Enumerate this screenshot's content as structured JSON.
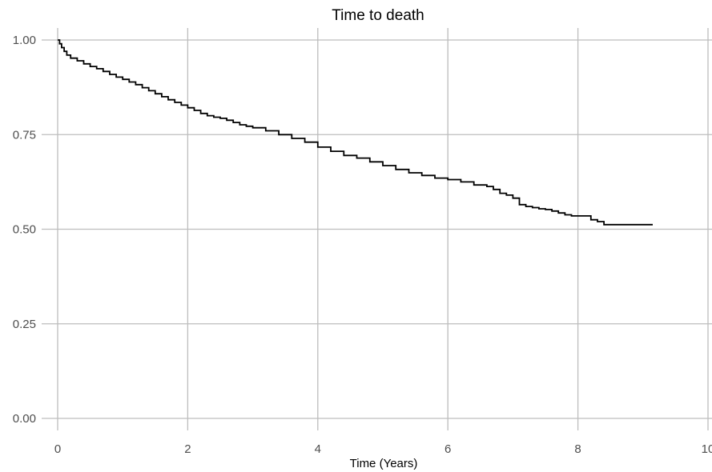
{
  "chart_data": {
    "type": "line",
    "title": "Time to death",
    "xlabel": "Time (Years)",
    "ylabel": "",
    "xlim": [
      0,
      10
    ],
    "ylim": [
      0,
      1
    ],
    "x_ticks": [
      "0",
      "2",
      "4",
      "6",
      "8",
      "10"
    ],
    "y_ticks": [
      "0.00",
      "0.25",
      "0.50",
      "0.75",
      "1.00"
    ],
    "grid": true,
    "legend": "none",
    "line_color": "#000000",
    "grid_color": "#bdbdbd",
    "series": [
      {
        "step": true,
        "x": [
          0,
          0.03,
          0.06,
          0.1,
          0.14,
          0.2,
          0.3,
          0.4,
          0.5,
          0.6,
          0.7,
          0.8,
          0.9,
          1.0,
          1.1,
          1.2,
          1.3,
          1.4,
          1.5,
          1.6,
          1.7,
          1.8,
          1.9,
          2.0,
          2.1,
          2.2,
          2.3,
          2.4,
          2.5,
          2.6,
          2.7,
          2.8,
          2.9,
          3.0,
          3.2,
          3.4,
          3.6,
          3.8,
          4.0,
          4.2,
          4.4,
          4.6,
          4.8,
          5.0,
          5.2,
          5.4,
          5.6,
          5.8,
          6.0,
          6.2,
          6.4,
          6.6,
          6.7,
          6.8,
          6.9,
          7.0,
          7.1,
          7.2,
          7.3,
          7.4,
          7.5,
          7.6,
          7.7,
          7.8,
          7.9,
          8.0,
          8.2,
          8.3,
          8.4,
          8.5,
          9.15
        ],
        "y": [
          1.0,
          0.99,
          0.98,
          0.97,
          0.96,
          0.952,
          0.945,
          0.937,
          0.93,
          0.924,
          0.917,
          0.909,
          0.902,
          0.896,
          0.889,
          0.882,
          0.874,
          0.866,
          0.858,
          0.85,
          0.842,
          0.835,
          0.828,
          0.821,
          0.814,
          0.806,
          0.8,
          0.796,
          0.793,
          0.788,
          0.782,
          0.776,
          0.772,
          0.768,
          0.76,
          0.75,
          0.74,
          0.73,
          0.717,
          0.706,
          0.695,
          0.688,
          0.678,
          0.668,
          0.658,
          0.649,
          0.642,
          0.635,
          0.631,
          0.625,
          0.617,
          0.613,
          0.605,
          0.595,
          0.59,
          0.582,
          0.565,
          0.56,
          0.557,
          0.554,
          0.552,
          0.548,
          0.543,
          0.538,
          0.535,
          0.535,
          0.525,
          0.52,
          0.512,
          0.512,
          0.512
        ]
      }
    ]
  }
}
